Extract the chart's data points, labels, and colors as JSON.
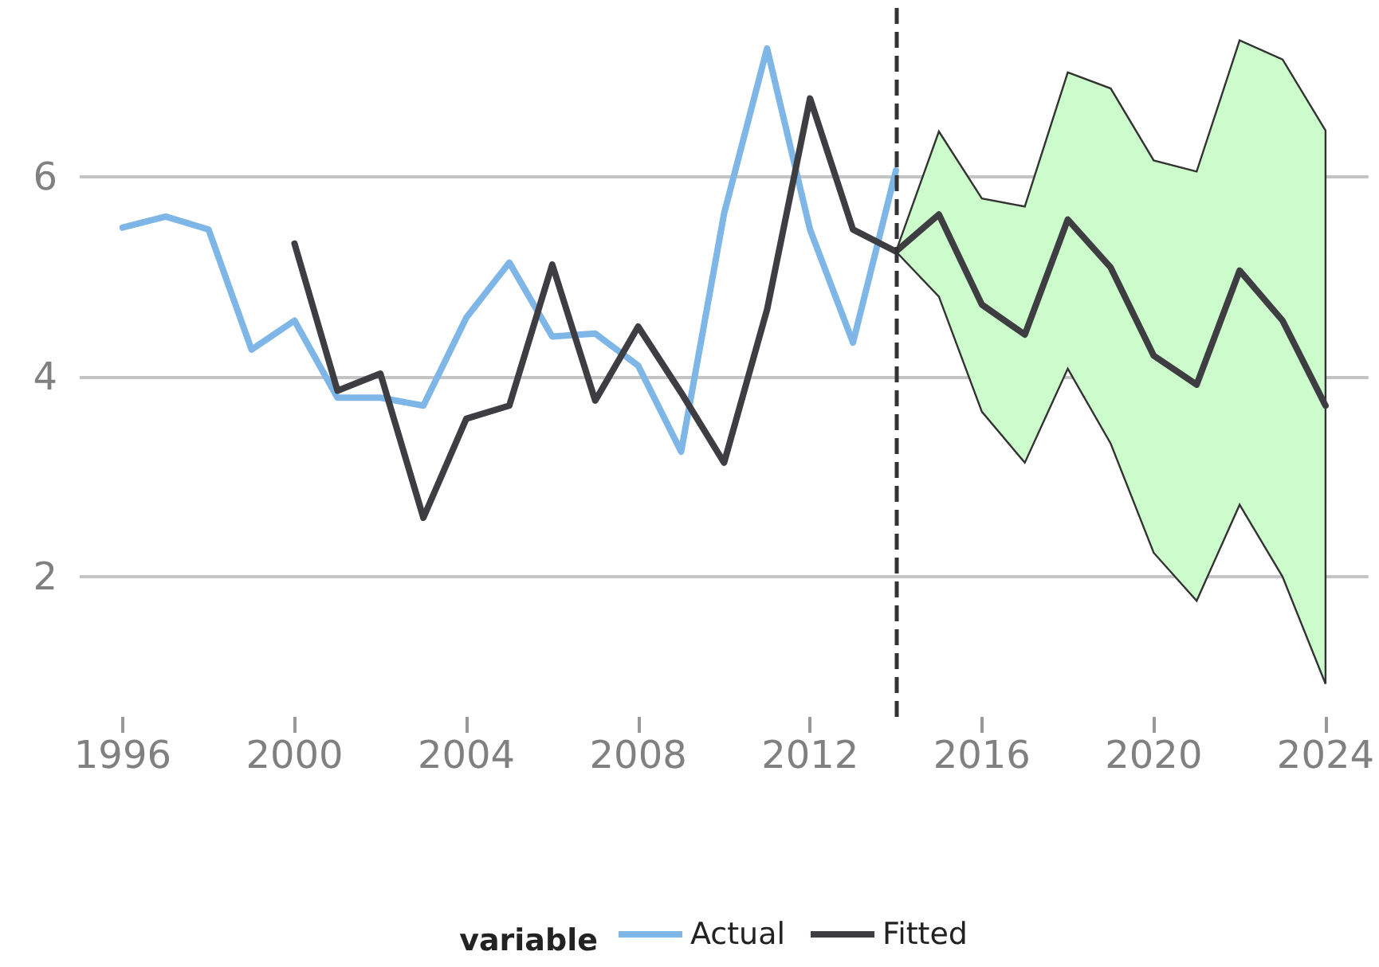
{
  "chart_data": {
    "type": "line",
    "legend_title": "variable",
    "legend": "bottom",
    "grid": "y",
    "line_style": "solid",
    "marker": "none",
    "xlim": [
      1995,
      2025
    ],
    "xticks": [
      1996,
      2000,
      2004,
      2008,
      2012,
      2016,
      2020,
      2024
    ],
    "ylim": [
      0.6,
      7.7
    ],
    "yticks": [
      2,
      4,
      6
    ],
    "series": [
      {
        "name": "Actual",
        "color": "#7eb6e8",
        "x": [
          1996,
          1997,
          1998,
          1999,
          2000,
          2001,
          2002,
          2003,
          2004,
          2005,
          2006,
          2007,
          2008,
          2009,
          2010,
          2011,
          2012,
          2013,
          2014
        ],
        "values": [
          5.49,
          5.6,
          5.47,
          4.27,
          4.56,
          3.79,
          3.79,
          3.71,
          4.59,
          5.14,
          4.4,
          4.43,
          4.11,
          3.25,
          5.63,
          7.28,
          5.47,
          4.34,
          6.06
        ]
      },
      {
        "name": "Fitted",
        "color": "#3d3d42",
        "x": [
          2000,
          2001,
          2002,
          2003,
          2004,
          2005,
          2006,
          2007,
          2008,
          2009,
          2010,
          2011,
          2012,
          2013,
          2014,
          2015,
          2016,
          2017,
          2018,
          2019,
          2020,
          2021,
          2022,
          2023,
          2024
        ],
        "values": [
          5.33,
          3.86,
          4.03,
          2.59,
          3.58,
          3.71,
          5.12,
          3.76,
          4.5,
          3.84,
          3.14,
          4.67,
          6.78,
          5.47,
          5.25,
          5.62,
          4.72,
          4.42,
          5.57,
          5.09,
          4.21,
          3.92,
          5.06,
          4.56,
          3.71
        ],
        "lower": [
          null,
          null,
          null,
          null,
          null,
          null,
          null,
          null,
          null,
          null,
          null,
          null,
          null,
          null,
          5.25,
          4.8,
          3.65,
          3.14,
          4.08,
          3.33,
          2.24,
          1.76,
          2.72,
          2.0,
          0.93
        ],
        "upper": [
          null,
          null,
          null,
          null,
          null,
          null,
          null,
          null,
          null,
          null,
          null,
          null,
          null,
          null,
          5.25,
          6.45,
          5.78,
          5.7,
          7.04,
          6.88,
          6.16,
          6.05,
          7.36,
          7.17,
          6.46
        ]
      }
    ],
    "ref_lines": [
      {
        "axis": "x",
        "value": 2014,
        "line_style": "dashed",
        "color": "#333333"
      }
    ]
  }
}
